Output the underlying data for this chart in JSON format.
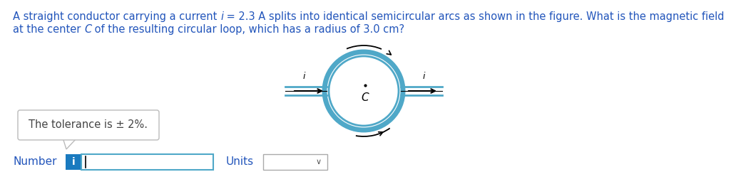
{
  "title_line1_parts": [
    [
      "A straight conductor carrying a current ",
      false
    ],
    [
      "i",
      true
    ],
    [
      " = 2.3 A splits into identical semicircular arcs as shown in the figure. What is the magnetic field",
      false
    ]
  ],
  "title_line2_parts": [
    [
      "at the center ",
      false
    ],
    [
      "C",
      true
    ],
    [
      " of the resulting circular loop, which has a radius of 3.0 cm?",
      false
    ]
  ],
  "tolerance_text": "The tolerance is ± 2%.",
  "number_label": "Number",
  "units_label": "Units",
  "title_color": "#2255bb",
  "tolerance_color": "#444444",
  "number_units_color": "#2255bb",
  "bg_color": "#ffffff",
  "circle_stroke_color": "#4fa8c8",
  "input_box_color": "#1a7abf",
  "font_size_title": 10.5,
  "font_size_bottom": 11
}
